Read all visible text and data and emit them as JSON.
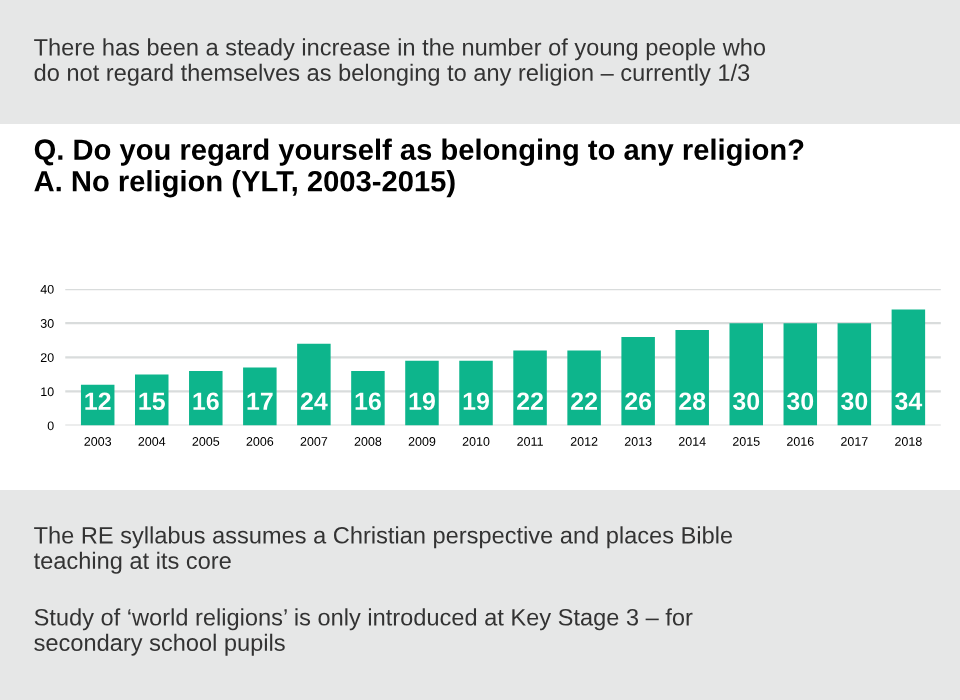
{
  "chart_data": {
    "type": "bar",
    "title": "Q. Do you regard yourself as belonging to any religion?\nA. No religion (YLT, 2003-2015)",
    "categories": [
      "2003",
      "2004",
      "2005",
      "2006",
      "2007",
      "2008",
      "2009",
      "2010",
      "2011",
      "2012",
      "2013",
      "2014",
      "2015",
      "2016",
      "2017",
      "2018"
    ],
    "values": [
      12,
      15,
      16,
      17,
      24,
      16,
      19,
      19,
      22,
      22,
      26,
      28,
      30,
      30,
      30,
      34
    ],
    "color": "#0db58c",
    "ylim": [
      0,
      40
    ],
    "yticks": [
      0,
      10,
      20,
      30,
      40
    ],
    "grid": "y",
    "data_labels": true,
    "annotations": [
      "There has been a steady increase in the number of young people who\ndo not regard themselves as belonging to any religion – currently 1/3",
      "The RE syllabus assumes a Christian perspective and places Bible\nteaching at its core",
      "Study of ‘world religions’ is only introduced at Key Stage 3 – for\nsecondary school pupils"
    ]
  }
}
